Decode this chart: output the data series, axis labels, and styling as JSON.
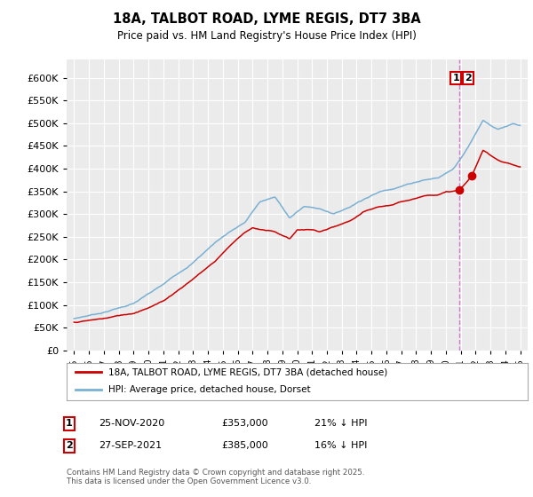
{
  "title": "18A, TALBOT ROAD, LYME REGIS, DT7 3BA",
  "subtitle": "Price paid vs. HM Land Registry's House Price Index (HPI)",
  "legend_label_red": "18A, TALBOT ROAD, LYME REGIS, DT7 3BA (detached house)",
  "legend_label_blue": "HPI: Average price, detached house, Dorset",
  "transaction1_date": "25-NOV-2020",
  "transaction1_price": "£353,000",
  "transaction1_hpi": "21% ↓ HPI",
  "transaction2_date": "27-SEP-2021",
  "transaction2_price": "£385,000",
  "transaction2_hpi": "16% ↓ HPI",
  "footer": "Contains HM Land Registry data © Crown copyright and database right 2025.\nThis data is licensed under the Open Government Licence v3.0.",
  "t1_year": 2020.917,
  "t2_year": 2021.75,
  "t1_price": 353000,
  "t2_price": 385000,
  "ylim": [
    0,
    640000
  ],
  "xlim_min": 1994.5,
  "xlim_max": 2025.5,
  "yticks": [
    0,
    50000,
    100000,
    150000,
    200000,
    250000,
    300000,
    350000,
    400000,
    450000,
    500000,
    550000,
    600000
  ],
  "background_color": "#ffffff",
  "plot_bg_color": "#ebebeb",
  "grid_color": "#ffffff",
  "red_color": "#cc0000",
  "blue_color": "#7ab0d4",
  "vline_color": "#cc66cc"
}
